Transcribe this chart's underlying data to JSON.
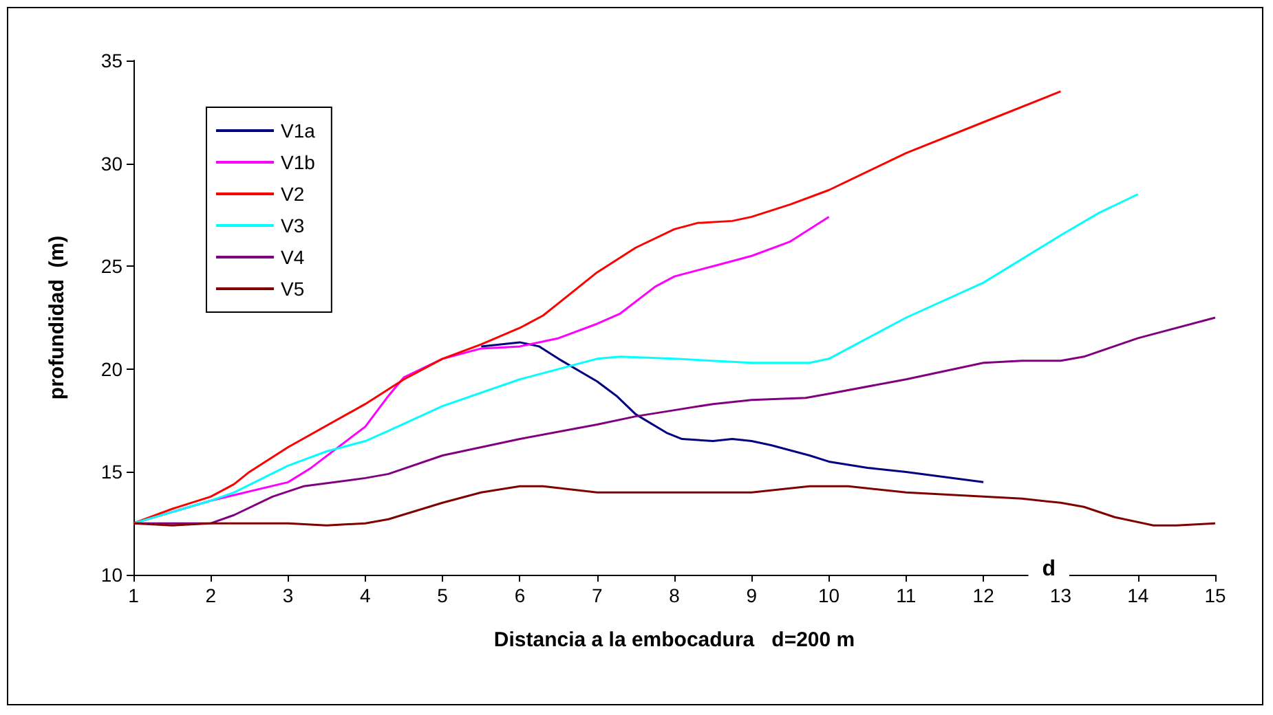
{
  "chart_data": {
    "type": "line",
    "xlabel": "Distancia a la embocadura   d=200 m",
    "ylabel": "profundidad  (m)",
    "annotations": [
      "d"
    ],
    "xlim": [
      1,
      15
    ],
    "xticks": [
      1,
      2,
      3,
      4,
      5,
      6,
      7,
      8,
      9,
      10,
      11,
      12,
      13,
      14,
      15
    ],
    "ylim": [
      10,
      35
    ],
    "yticks": [
      10,
      15,
      20,
      25,
      30,
      35
    ],
    "grid": false,
    "legend": "top left",
    "marker": "none",
    "line_style": "solid",
    "series": [
      {
        "name": "V1a",
        "color": "#000080",
        "x": [
          5.5,
          6,
          6.25,
          6.5,
          7,
          7.25,
          7.5,
          7.9,
          8.1,
          8.5,
          8.75,
          9,
          9.25,
          9.75,
          10,
          10.5,
          11,
          12
        ],
        "values": [
          21.1,
          21.3,
          21.1,
          20.5,
          19.4,
          18.7,
          17.8,
          16.9,
          16.6,
          16.5,
          16.6,
          16.5,
          16.3,
          15.8,
          15.5,
          15.2,
          15,
          14.5
        ]
      },
      {
        "name": "V1b",
        "color": "#ff00ff",
        "x": [
          1,
          2,
          3,
          3.3,
          4,
          4.3,
          4.5,
          5,
          5.5,
          6,
          6.5,
          7,
          7.3,
          7.75,
          8,
          8.5,
          9,
          9.5,
          10
        ],
        "values": [
          12.5,
          13.6,
          14.5,
          15.2,
          17.2,
          18.7,
          19.6,
          20.5,
          21,
          21.1,
          21.5,
          22.2,
          22.7,
          24,
          24.5,
          25,
          25.5,
          26.2,
          27.4
        ]
      },
      {
        "name": "V2",
        "color": "#ff0000",
        "x": [
          1,
          1.5,
          2,
          2.3,
          2.5,
          3,
          4,
          4.5,
          5,
          5.5,
          6,
          6.3,
          6.5,
          7,
          7.5,
          8,
          8.3,
          8.75,
          9,
          9.5,
          10,
          11,
          12,
          13
        ],
        "values": [
          12.5,
          13.2,
          13.8,
          14.4,
          15,
          16.2,
          18.3,
          19.5,
          20.5,
          21.2,
          22,
          22.6,
          23.2,
          24.7,
          25.9,
          26.8,
          27.1,
          27.2,
          27.4,
          28,
          28.7,
          30.5,
          32,
          33.5
        ]
      },
      {
        "name": "V3",
        "color": "#00ffff",
        "x": [
          1,
          2,
          2.3,
          3,
          3.5,
          4,
          4.3,
          5,
          6,
          7,
          7.3,
          8,
          9,
          9.75,
          10,
          10.25,
          11,
          12,
          13,
          13.5,
          14
        ],
        "values": [
          12.5,
          13.6,
          14,
          15.3,
          16,
          16.5,
          17,
          18.2,
          19.5,
          20.5,
          20.6,
          20.5,
          20.3,
          20.3,
          20.5,
          21,
          22.5,
          24.2,
          26.5,
          27.6,
          28.5
        ]
      },
      {
        "name": "V4",
        "color": "#800080",
        "x": [
          1,
          2,
          2.3,
          2.8,
          3.2,
          4,
          4.3,
          5,
          6,
          7,
          7.5,
          8,
          8.5,
          9,
          9.7,
          10,
          11,
          12,
          12.5,
          13,
          13.3,
          14,
          15
        ],
        "values": [
          12.5,
          12.5,
          12.9,
          13.8,
          14.3,
          14.7,
          14.9,
          15.8,
          16.6,
          17.3,
          17.7,
          18,
          18.3,
          18.5,
          18.6,
          18.8,
          19.5,
          20.3,
          20.4,
          20.4,
          20.6,
          21.5,
          22.5
        ]
      },
      {
        "name": "V5",
        "color": "#800000",
        "x": [
          1,
          1.5,
          2,
          3,
          3.5,
          4,
          4.3,
          5,
          5.5,
          6,
          6.3,
          7,
          8,
          9,
          9.75,
          10.25,
          11,
          12,
          12.5,
          13,
          13.3,
          13.7,
          14.2,
          14.5,
          15
        ],
        "values": [
          12.5,
          12.4,
          12.5,
          12.5,
          12.4,
          12.5,
          12.7,
          13.5,
          14,
          14.3,
          14.3,
          14,
          14,
          14,
          14.3,
          14.3,
          14,
          13.8,
          13.7,
          13.5,
          13.3,
          12.8,
          12.4,
          12.4,
          12.5
        ]
      }
    ]
  }
}
